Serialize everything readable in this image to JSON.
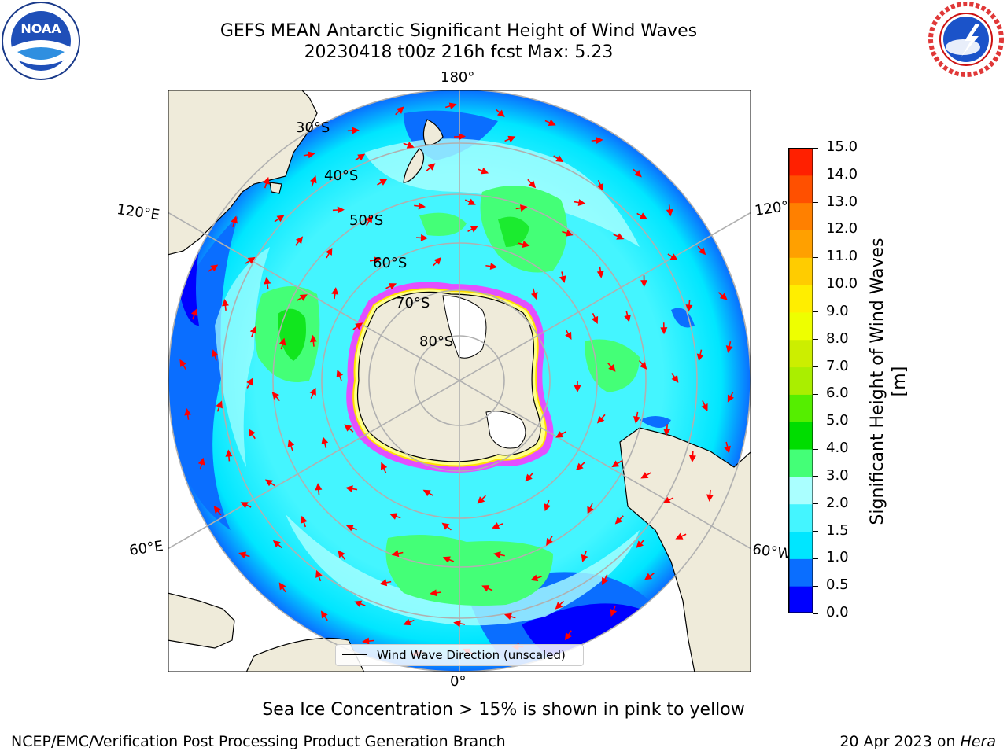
{
  "title": {
    "line1": "GEFS MEAN Antarctic Significant Height of Wind Waves",
    "line2": "20230418 t00z 216h fcst   Max: 5.23"
  },
  "map": {
    "projection": "south-polar-stereographic",
    "longitude_labels": {
      "top": "180°",
      "bottom": "0°",
      "upper_left": "120°E",
      "upper_right": "120°W",
      "lower_left": "60°E",
      "lower_right": "60°W"
    },
    "latitude_labels": [
      "30°S",
      "40°S",
      "50°S",
      "60°S",
      "70°S",
      "80°S"
    ],
    "legend_label": "Wind Wave Direction (unscaled)",
    "colors": {
      "land": "#efebda",
      "ice_shelf": "#ffffff",
      "sea_ice_edge": "#ff33ff",
      "arrows": "#ff0000",
      "grid": "#b0b0b0"
    }
  },
  "colorbar": {
    "title": "Significant Height of Wind Waves [m]",
    "ticks": [
      "0.0",
      "0.5",
      "1.0",
      "1.5",
      "2.0",
      "3.0",
      "4.0",
      "5.0",
      "6.0",
      "7.0",
      "8.0",
      "9.0",
      "10.0",
      "11.0",
      "12.0",
      "13.0",
      "14.0",
      "15.0"
    ],
    "colors": [
      "#0000ff",
      "#0a6eff",
      "#00e6ff",
      "#44f5ff",
      "#aaffff",
      "#44ff77",
      "#00dd00",
      "#55ee00",
      "#aaee00",
      "#ccee00",
      "#eeff00",
      "#ffee00",
      "#ffcc00",
      "#ffa000",
      "#ff8000",
      "#ff5000",
      "#ff2000"
    ]
  },
  "caption": "Sea Ice Concentration > 15% is shown in pink to yellow",
  "footer": {
    "left": "NCEP/EMC/Verification Post Processing Product Generation Branch",
    "right_prefix": "20 Apr 2023 on ",
    "right_machine": "Hera"
  },
  "logos": {
    "noaa": "NOAA",
    "nws": "NATIONAL WEATHER SERVICE"
  }
}
